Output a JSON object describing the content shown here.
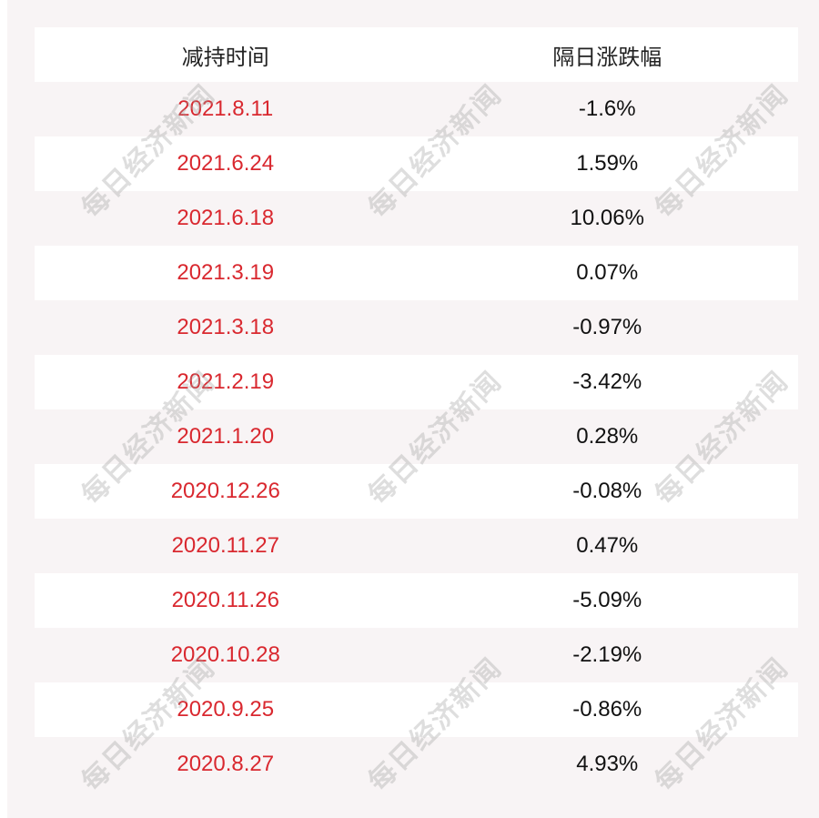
{
  "chart_data": {
    "type": "table",
    "columns": [
      "减持时间",
      "隔日涨跌幅"
    ],
    "rows": [
      [
        "2021.8.11",
        "-1.6%"
      ],
      [
        "2021.6.24",
        "1.59%"
      ],
      [
        "2021.6.18",
        "10.06%"
      ],
      [
        "2021.3.19",
        "0.07%"
      ],
      [
        "2021.3.18",
        "-0.97%"
      ],
      [
        "2021.2.19",
        "-3.42%"
      ],
      [
        "2021.1.20",
        "0.28%"
      ],
      [
        "2020.12.26",
        "-0.08%"
      ],
      [
        "2020.11.27",
        "0.47%"
      ],
      [
        "2020.11.26",
        "-5.09%"
      ],
      [
        "2020.10.28",
        "-2.19%"
      ],
      [
        "2020.9.25",
        "-0.86%"
      ],
      [
        "2020.8.27",
        "4.93%"
      ]
    ]
  },
  "watermark": "每日经济新闻",
  "colors": {
    "date": "#d9282f",
    "value": "#111111",
    "stripe": "#f8f4f5"
  }
}
